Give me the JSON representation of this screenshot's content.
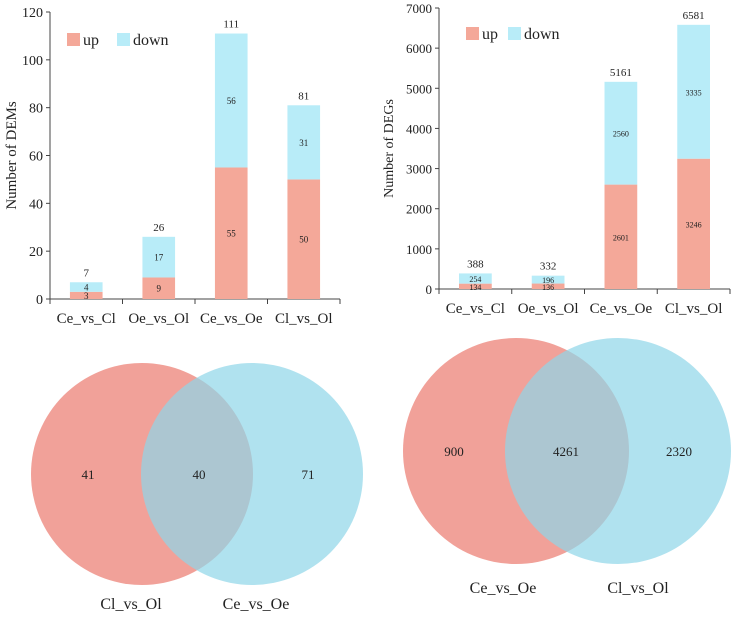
{
  "chart_data": [
    {
      "type": "bar",
      "stacked": true,
      "categories": [
        "Ce_vs_Cl",
        "Oe_vs_Ol",
        "Ce_vs_Oe",
        "Cl_vs_Ol"
      ],
      "ylabel": "Number of DEMs",
      "ylim": [
        0,
        120
      ],
      "yticks": [
        0,
        20,
        40,
        60,
        80,
        100,
        120
      ],
      "series": [
        {
          "name": "up",
          "values": [
            3,
            9,
            55,
            50
          ]
        },
        {
          "name": "down",
          "values": [
            4,
            17,
            56,
            31
          ]
        }
      ],
      "totals": [
        7,
        26,
        111,
        81
      ],
      "legend_position": "top-left",
      "grid": false
    },
    {
      "type": "bar",
      "stacked": true,
      "categories": [
        "Ce_vs_Cl",
        "Oe_vs_Ol",
        "Ce_vs_Oe",
        "Cl_vs_Ol"
      ],
      "ylabel": "Number of DEGs",
      "ylim": [
        0,
        7000
      ],
      "yticks": [
        0,
        1000,
        2000,
        3000,
        4000,
        5000,
        6000,
        7000
      ],
      "series": [
        {
          "name": "up",
          "values": [
            134,
            136,
            2601,
            3246
          ]
        },
        {
          "name": "down",
          "values": [
            254,
            196,
            2560,
            3335
          ]
        }
      ],
      "totals": [
        388,
        332,
        5161,
        6581
      ],
      "legend_position": "top-left",
      "grid": false
    },
    {
      "type": "venn",
      "sets": [
        "Cl_vs_Ol",
        "Ce_vs_Oe"
      ],
      "counts": {
        "left_only": 41,
        "both": 40,
        "right_only": 71
      }
    },
    {
      "type": "venn",
      "sets": [
        "Ce_vs_Oe",
        "Cl_vs_Ol"
      ],
      "counts": {
        "left_only": 900,
        "both": 4261,
        "right_only": 2320
      }
    }
  ],
  "colors": {
    "up": "#f4a899",
    "down": "#b8ecf8",
    "venn_left": "#ee8a80",
    "venn_right": "#8fd6e8"
  }
}
